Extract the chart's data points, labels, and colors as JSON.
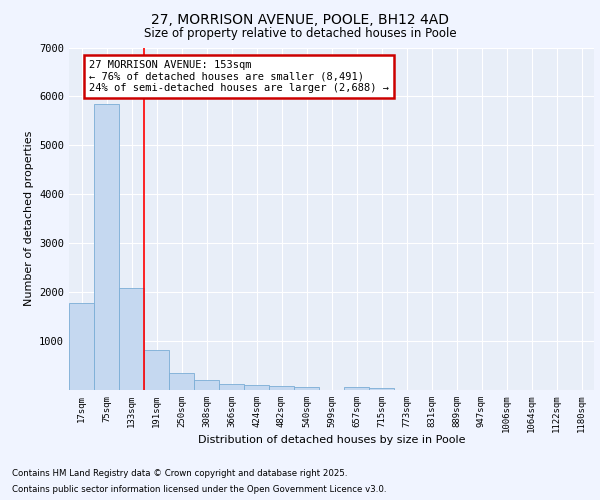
{
  "title1": "27, MORRISON AVENUE, POOLE, BH12 4AD",
  "title2": "Size of property relative to detached houses in Poole",
  "xlabel": "Distribution of detached houses by size in Poole",
  "ylabel": "Number of detached properties",
  "categories": [
    "17sqm",
    "75sqm",
    "133sqm",
    "191sqm",
    "250sqm",
    "308sqm",
    "366sqm",
    "424sqm",
    "482sqm",
    "540sqm",
    "599sqm",
    "657sqm",
    "715sqm",
    "773sqm",
    "831sqm",
    "889sqm",
    "947sqm",
    "1006sqm",
    "1064sqm",
    "1122sqm",
    "1180sqm"
  ],
  "values": [
    1780,
    5850,
    2080,
    820,
    350,
    200,
    120,
    110,
    90,
    60,
    5,
    60,
    50,
    10,
    5,
    5,
    3,
    2,
    2,
    1,
    1
  ],
  "bar_color": "#c5d8f0",
  "bar_edge_color": "#7aadd6",
  "background_color": "#e8eef8",
  "grid_color": "#d0d8f0",
  "fig_background": "#f0f4ff",
  "red_line_x": 2.5,
  "annotation_title": "27 MORRISON AVENUE: 153sqm",
  "annotation_line1": "← 76% of detached houses are smaller (8,491)",
  "annotation_line2": "24% of semi-detached houses are larger (2,688) →",
  "annotation_box_color": "#ffffff",
  "annotation_border_color": "#cc0000",
  "footer_line1": "Contains HM Land Registry data © Crown copyright and database right 2025.",
  "footer_line2": "Contains public sector information licensed under the Open Government Licence v3.0.",
  "ylim": [
    0,
    7000
  ],
  "yticks": [
    0,
    1000,
    2000,
    3000,
    4000,
    5000,
    6000,
    7000
  ]
}
